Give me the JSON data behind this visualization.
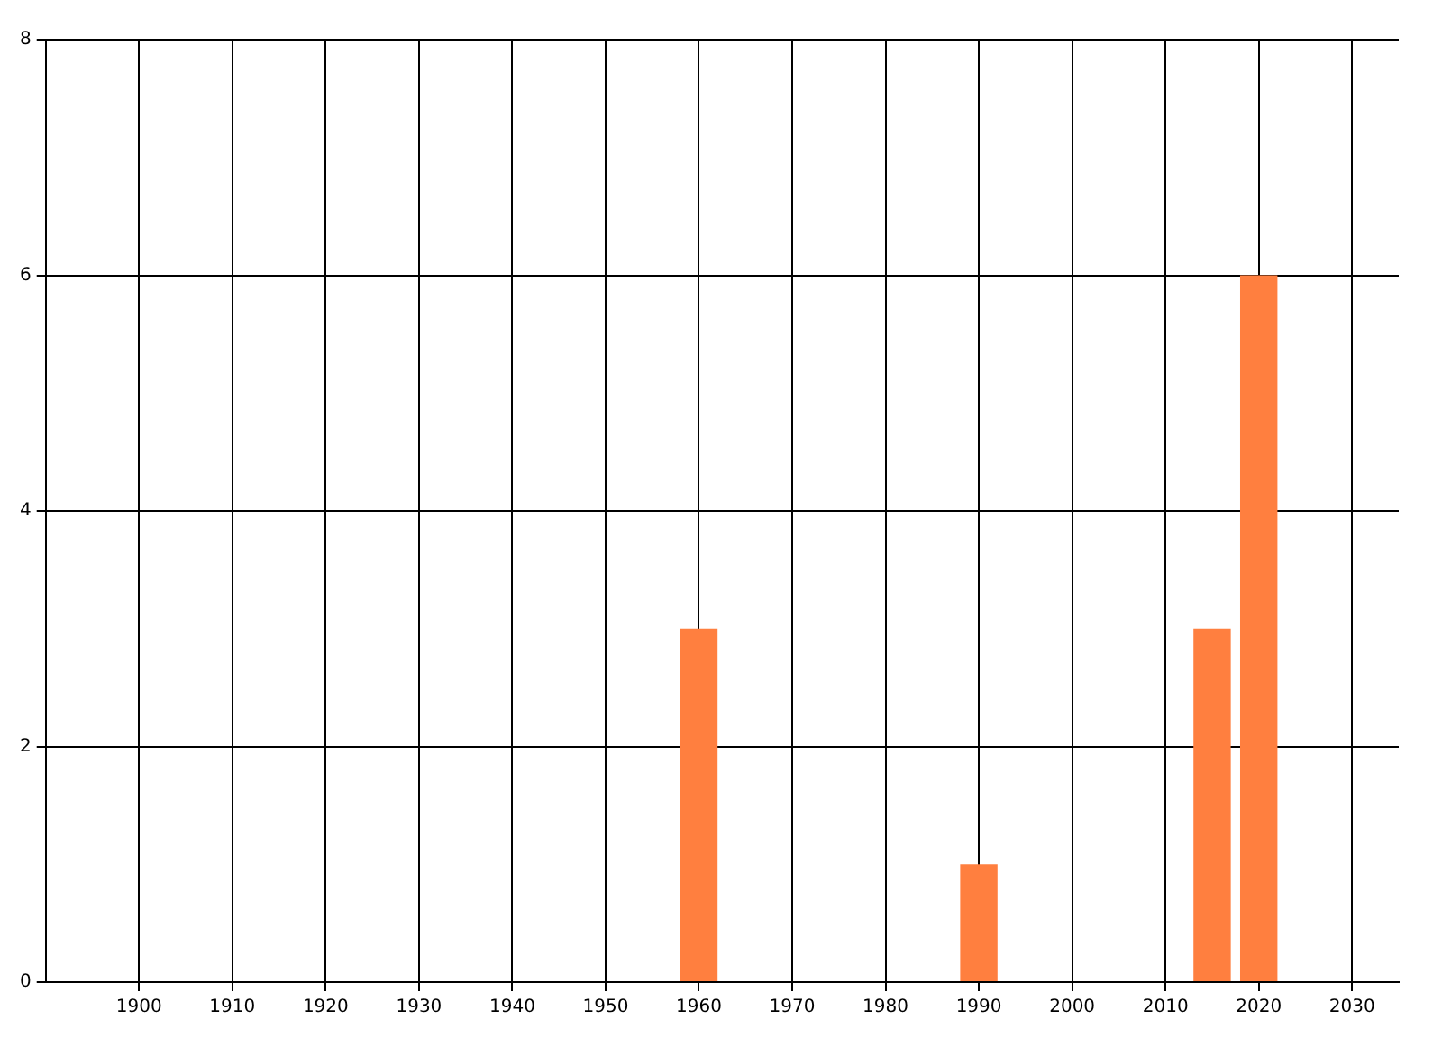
{
  "chart_data": {
    "type": "bar",
    "x": [
      1960,
      1990,
      2015,
      2020
    ],
    "values": [
      3,
      1,
      3,
      6
    ],
    "color": "#ff7f3f",
    "xlim": [
      1890,
      2035
    ],
    "xticks": [
      1900,
      1910,
      1920,
      1930,
      1940,
      1950,
      1960,
      1970,
      1980,
      1990,
      2000,
      2010,
      2020,
      2030
    ],
    "ylim": [
      0,
      8
    ],
    "yticks": [
      0,
      2,
      4,
      6,
      8
    ],
    "grid": true
  }
}
